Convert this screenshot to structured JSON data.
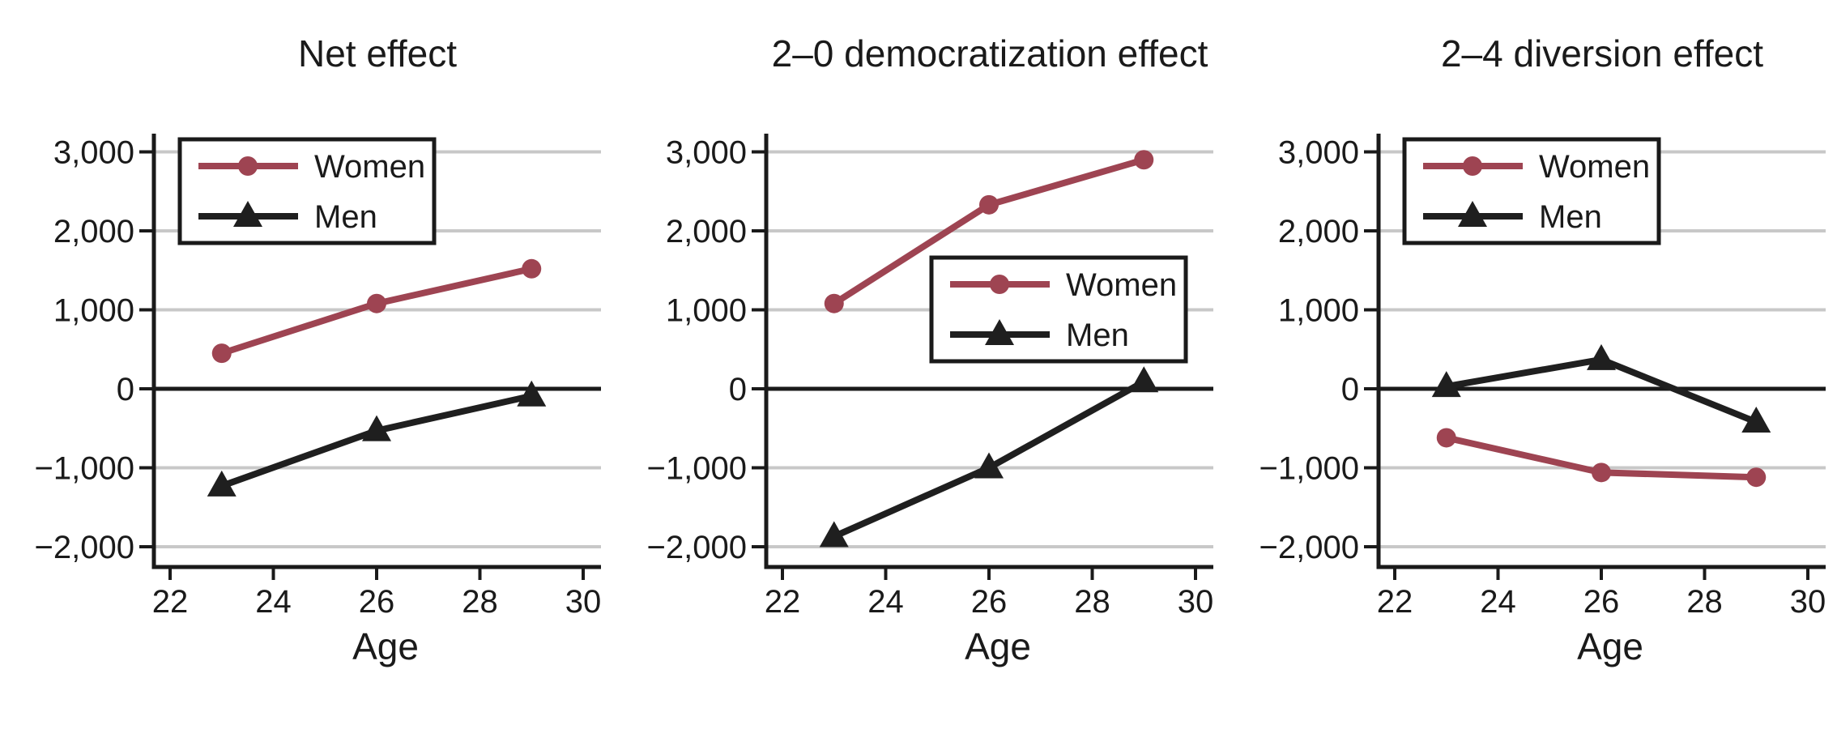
{
  "figure": {
    "background": "#ffffff",
    "description_colors": {
      "women_line": "#9e4452",
      "men_line": "#1f1f1f",
      "gridline": "#c8c8c8",
      "zero_line": "#1a1a1a",
      "axis": "#1a1a1a",
      "text": "#1a1a1a"
    }
  },
  "chart_data": [
    {
      "type": "line",
      "title": "Net effect",
      "xlabel": "Age",
      "ylabel": "",
      "x": [
        23,
        26,
        29
      ],
      "xticks": [
        22,
        24,
        26,
        28,
        30
      ],
      "xlim": [
        21.7,
        30.3
      ],
      "ytick_labels": [
        "3,000",
        "2,000",
        "1,000",
        "0",
        "−1,000",
        "−2,000"
      ],
      "ytick_values": [
        3000,
        2000,
        1000,
        0,
        -1000,
        -2000
      ],
      "ylim": [
        -2256,
        3231
      ],
      "grid": "horizontal-gray",
      "zero_reference_line": true,
      "legend_position": "top-left",
      "legend_entries": [
        "Women",
        "Men"
      ],
      "series": [
        {
          "name": "Women",
          "color": "#9e4452",
          "marker": "circle",
          "values": [
            450,
            1080,
            1520
          ]
        },
        {
          "name": "Men",
          "color": "#1f1f1f",
          "marker": "triangle",
          "values": [
            -1230,
            -530,
            -90
          ]
        }
      ]
    },
    {
      "type": "line",
      "title": "2–0 democratization effect",
      "xlabel": "Age",
      "ylabel": "",
      "x": [
        23,
        26,
        29
      ],
      "xticks": [
        22,
        24,
        26,
        28,
        30
      ],
      "xlim": [
        21.7,
        30.3
      ],
      "ytick_labels": [
        "3,000",
        "2,000",
        "1,000",
        "0",
        "−1,000",
        "−2,000"
      ],
      "ytick_values": [
        3000,
        2000,
        1000,
        0,
        -1000,
        -2000
      ],
      "ylim": [
        -2256,
        3231
      ],
      "grid": "horizontal-gray",
      "zero_reference_line": true,
      "legend_position": "middle-right",
      "legend_entries": [
        "Women",
        "Men"
      ],
      "series": [
        {
          "name": "Women",
          "color": "#9e4452",
          "marker": "circle",
          "values": [
            1080,
            2330,
            2900
          ]
        },
        {
          "name": "Men",
          "color": "#1f1f1f",
          "marker": "triangle",
          "values": [
            -1870,
            -1000,
            90
          ]
        }
      ]
    },
    {
      "type": "line",
      "title": "2–4 diversion effect",
      "xlabel": "Age",
      "ylabel": "",
      "x": [
        23,
        26,
        29
      ],
      "xticks": [
        22,
        24,
        26,
        28,
        30
      ],
      "xlim": [
        21.7,
        30.3
      ],
      "ytick_labels": [
        "3,000",
        "2,000",
        "1,000",
        "0",
        "−1,000",
        "−2,000"
      ],
      "ytick_values": [
        3000,
        2000,
        1000,
        0,
        -1000,
        -2000
      ],
      "ylim": [
        -2256,
        3231
      ],
      "grid": "horizontal-gray",
      "zero_reference_line": true,
      "legend_position": "top-left",
      "legend_entries": [
        "Women",
        "Men"
      ],
      "series": [
        {
          "name": "Women",
          "color": "#9e4452",
          "marker": "circle",
          "values": [
            -620,
            -1060,
            -1120
          ]
        },
        {
          "name": "Men",
          "color": "#1f1f1f",
          "marker": "triangle",
          "values": [
            30,
            370,
            -420
          ]
        }
      ]
    }
  ]
}
